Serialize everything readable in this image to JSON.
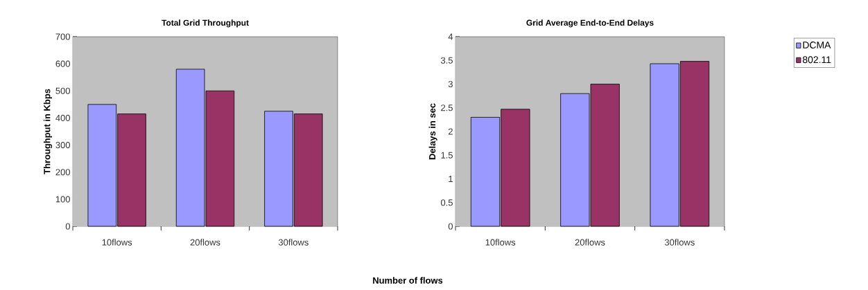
{
  "chart_data": [
    {
      "type": "bar",
      "title": "Total Grid Throughput",
      "ylabel": "Throughput in Kbps",
      "xlabel": "Number of flows",
      "categories": [
        "10flows",
        "20flows",
        "30flows"
      ],
      "series": [
        {
          "color": "#9999ff",
          "values": [
            450,
            580,
            425
          ]
        },
        {
          "color": "#993366",
          "values": [
            415,
            500,
            415
          ]
        }
      ],
      "ylim": [
        0,
        700
      ],
      "yticks": [
        0,
        100,
        200,
        300,
        400,
        500,
        600,
        700
      ]
    },
    {
      "type": "bar",
      "title": "Grid Average End-to-End Delays",
      "ylabel": "Delays in sec",
      "categories": [
        "10flows",
        "20flows",
        "30flows"
      ],
      "series": [
        {
          "name": "DCMA",
          "color": "#9999ff",
          "values": [
            2.3,
            2.8,
            3.43
          ]
        },
        {
          "name": "802.11",
          "color": "#993366",
          "values": [
            2.47,
            3.0,
            3.48
          ]
        }
      ],
      "ylim": [
        0,
        4
      ],
      "yticks": [
        0,
        0.5,
        1,
        1.5,
        2,
        2.5,
        3,
        3.5,
        4
      ],
      "legend": "right"
    }
  ]
}
